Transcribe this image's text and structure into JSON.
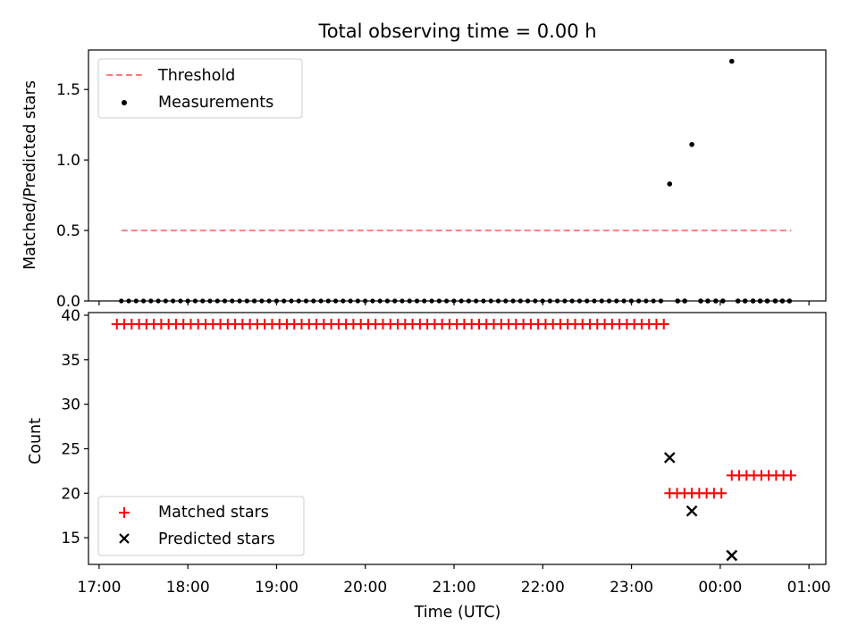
{
  "chart_data": {
    "title": "Total observing time = 0.00 h",
    "xlabel": "Time (UTC)",
    "x_tick_labels": [
      "17:00",
      "18:00",
      "19:00",
      "20:00",
      "21:00",
      "22:00",
      "23:00",
      "00:00",
      "01:00"
    ],
    "x_tick_values_hours": [
      17,
      18,
      19,
      20,
      21,
      22,
      23,
      24,
      25
    ],
    "xlim_hours": [
      16.88,
      25.19
    ],
    "panels": [
      {
        "type": "scatter",
        "ylabel": "Matched/Predicted stars",
        "ylim": [
          0,
          1.78
        ],
        "y_ticks": [
          0.0,
          0.5,
          1.0,
          1.5
        ],
        "y_tick_labels": [
          "0.0",
          "0.5",
          "1.0",
          "1.5"
        ],
        "threshold": {
          "name": "Threshold",
          "value": 0.5,
          "x_range": [
            17.25,
            24.8
          ],
          "color": "#ff7f7f",
          "style": "dashed"
        },
        "measurements": {
          "name": "Measurements",
          "color": "#000000",
          "zero_series": {
            "start": 17.25,
            "step": 0.0833,
            "end": 23.35,
            "value": 0.0
          },
          "late_points": [
            {
              "x": 23.52,
              "y": 0.0
            },
            {
              "x": 23.6,
              "y": 0.0
            },
            {
              "x": 23.78,
              "y": 0.0
            },
            {
              "x": 23.86,
              "y": 0.0
            },
            {
              "x": 23.95,
              "y": 0.0
            },
            {
              "x": 24.03,
              "y": 0.0
            },
            {
              "x": 24.2,
              "y": 0.0
            },
            {
              "x": 24.28,
              "y": 0.0
            },
            {
              "x": 24.37,
              "y": 0.0
            },
            {
              "x": 24.45,
              "y": 0.0
            },
            {
              "x": 24.53,
              "y": 0.0
            },
            {
              "x": 24.62,
              "y": 0.0
            },
            {
              "x": 24.7,
              "y": 0.0
            },
            {
              "x": 24.78,
              "y": 0.0
            },
            {
              "x": 23.43,
              "y": 0.83
            },
            {
              "x": 23.68,
              "y": 1.11
            },
            {
              "x": 24.13,
              "y": 1.7
            }
          ]
        },
        "legend": {
          "placement": "upper-left",
          "entries": [
            "Threshold",
            "Measurements"
          ]
        }
      },
      {
        "type": "scatter",
        "ylabel": "Count",
        "ylim": [
          12.0,
          40.3
        ],
        "y_ticks": [
          15,
          20,
          25,
          30,
          35,
          40
        ],
        "y_tick_labels": [
          "15",
          "20",
          "25",
          "30",
          "35",
          "40"
        ],
        "matched": {
          "name": "Matched stars",
          "marker": "+",
          "color": "#ff0000",
          "segments": [
            {
              "start": 17.2,
              "end": 23.35,
              "step": 0.0833,
              "value": 39
            },
            {
              "start": 23.43,
              "end": 24.03,
              "step": 0.0833,
              "value": 20
            },
            {
              "start": 24.13,
              "end": 24.78,
              "step": 0.0833,
              "value": 22
            }
          ]
        },
        "predicted": {
          "name": "Predicted stars",
          "marker": "x",
          "color": "#000000",
          "points": [
            {
              "x": 23.43,
              "y": 24
            },
            {
              "x": 23.68,
              "y": 18
            },
            {
              "x": 24.13,
              "y": 13
            }
          ]
        },
        "legend": {
          "placement": "lower-left",
          "entries": [
            "Matched stars",
            "Predicted stars"
          ]
        }
      }
    ]
  }
}
